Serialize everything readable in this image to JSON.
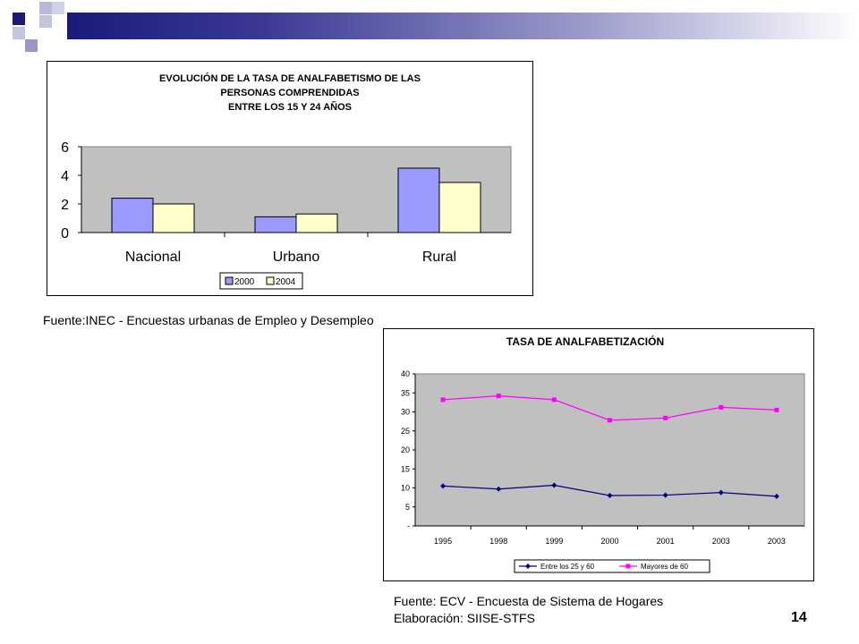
{
  "slide": {
    "source1": "Fuente:INEC - Encuestas urbanas de Empleo y Desempleo",
    "source2_line1": "Fuente: ECV - Encuesta de Sistema de Hogares",
    "source2_line2": "Elaboración: SIISE-STFS",
    "page_number": "14"
  },
  "colors": {
    "dark_blue": "#1a1a7a",
    "bar_2000": "#9999ff",
    "bar_2004": "#ffffcc",
    "line_25_60": "#000080",
    "line_60": "#ff00ff",
    "plot_bg": "#c0c0c0"
  },
  "chart_data": [
    {
      "type": "bar",
      "title_lines": [
        "EVOLUCIÓN DE LA TASA DE ANALFABETISMO DE LAS",
        "PERSONAS COMPRENDIDAS",
        "ENTRE LOS 15 Y 24 AÑOS"
      ],
      "categories": [
        "Nacional",
        "Urbano",
        "Rural"
      ],
      "series": [
        {
          "name": "2000",
          "values": [
            2.4,
            1.1,
            4.5
          ]
        },
        {
          "name": "2004",
          "values": [
            2.0,
            1.3,
            3.5
          ]
        }
      ],
      "yticks": [
        "0",
        "2",
        "4",
        "6"
      ],
      "ylim": [
        0,
        6
      ],
      "grid": false,
      "legend": "bottom"
    },
    {
      "type": "line",
      "title": "TASA DE ANALFABETIZACIÓN",
      "categories": [
        "1995",
        "1998",
        "1999",
        "2000",
        "2001",
        "2003",
        "2003"
      ],
      "series": [
        {
          "name": "Entre los 25 y 60",
          "values": [
            10.5,
            9.7,
            10.7,
            8.0,
            8.1,
            8.8,
            7.8
          ]
        },
        {
          "name": "Mayores de 60",
          "values": [
            33.2,
            34.2,
            33.2,
            27.8,
            28.4,
            31.2,
            30.5
          ]
        }
      ],
      "yticks": [
        "-",
        "5",
        "10",
        "15",
        "20",
        "25",
        "30",
        "35",
        "40"
      ],
      "ylim": [
        0,
        40
      ],
      "grid": false,
      "legend": "bottom"
    }
  ]
}
